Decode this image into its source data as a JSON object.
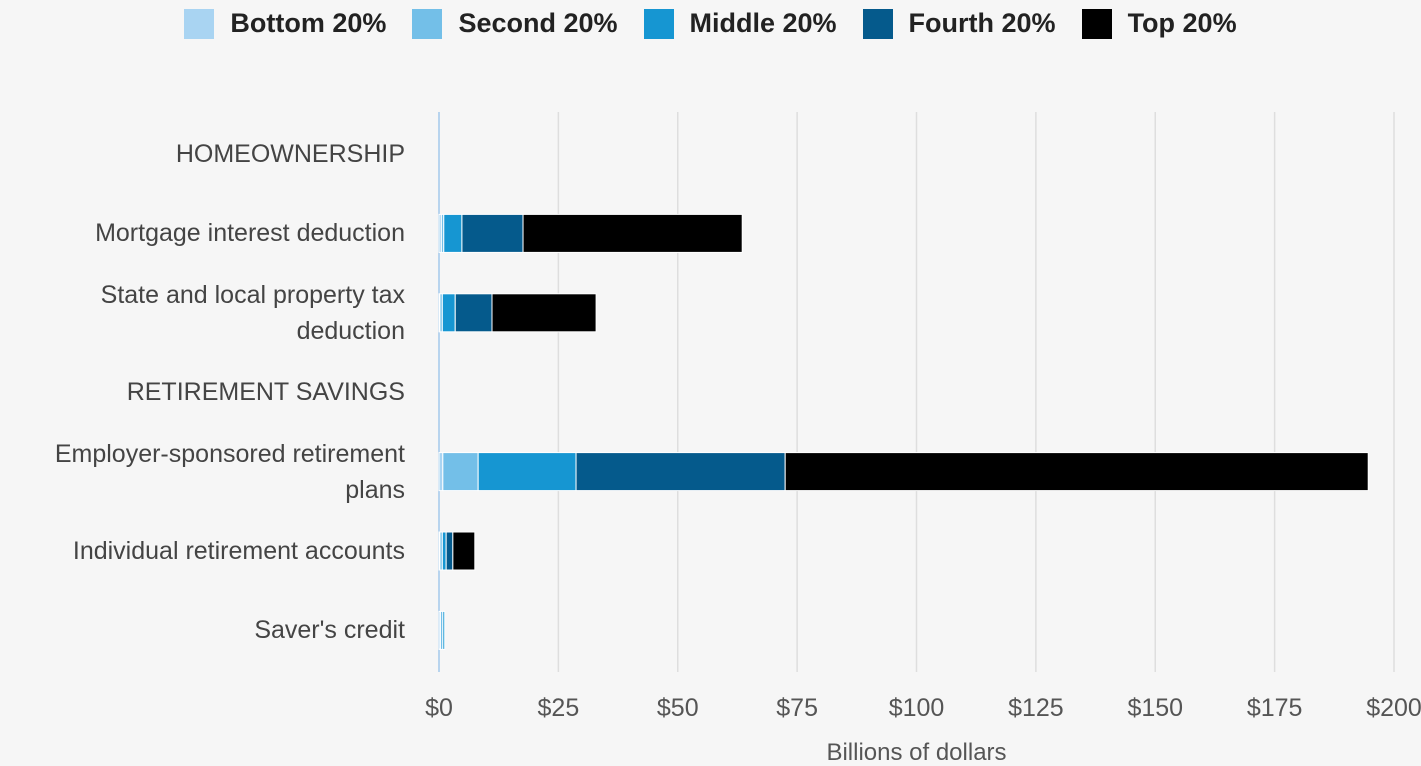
{
  "chart_data": {
    "type": "bar",
    "orientation": "horizontal",
    "stacked": true,
    "categories": [
      "HOMEOWNERSHIP",
      "Mortgage interest deduction",
      "State and local property tax deduction",
      "RETIREMENT SAVINGS",
      "Employer-sponsored retirement plans",
      "Individual retirement accounts",
      "Saver's credit"
    ],
    "series": [
      {
        "name": "Bottom 20%",
        "color": "#a9d4f2",
        "values": [
          null,
          0.5,
          0.2,
          null,
          0.8,
          0.2,
          0.3
        ]
      },
      {
        "name": "Second 20%",
        "color": "#73bfe8",
        "values": [
          null,
          0.5,
          0.5,
          null,
          7.4,
          0.5,
          0.5
        ]
      },
      {
        "name": "Middle 20%",
        "color": "#1696d2",
        "values": [
          null,
          3.8,
          2.7,
          null,
          20.5,
          0.8,
          0.4
        ]
      },
      {
        "name": "Fourth 20%",
        "color": "#055a8c",
        "values": [
          null,
          12.8,
          7.7,
          null,
          43.8,
          1.4,
          0
        ]
      },
      {
        "name": "Top 20%",
        "color": "#000000",
        "values": [
          null,
          45.9,
          21.8,
          null,
          122.1,
          4.6,
          0
        ]
      }
    ],
    "xlabel": "Billions of dollars",
    "xlim": [
      0,
      200
    ],
    "xticks": [
      {
        "value": 0,
        "label": "$0"
      },
      {
        "value": 25,
        "label": "$25"
      },
      {
        "value": 50,
        "label": "$50"
      },
      {
        "value": 75,
        "label": "$75"
      },
      {
        "value": 100,
        "label": "$100"
      },
      {
        "value": 125,
        "label": "$125"
      },
      {
        "value": 150,
        "label": "$150"
      },
      {
        "value": 175,
        "label": "$175"
      },
      {
        "value": 200,
        "label": "$200"
      }
    ],
    "grid": true,
    "legend": "top"
  }
}
